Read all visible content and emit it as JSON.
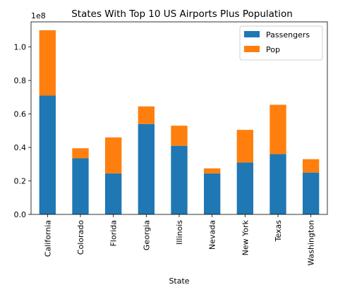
{
  "chart_data": {
    "type": "bar",
    "stacked": true,
    "title": "States With Top 10 US Airports Plus Population",
    "xlabel": "State",
    "ylabel": "",
    "y_multiplier": "1e8",
    "ylim": [
      0,
      1.15
    ],
    "yticks": [
      "0.0",
      "0.2",
      "0.4",
      "0.6",
      "0.8",
      "1.0"
    ],
    "ytick_values": [
      0,
      0.2,
      0.4,
      0.6,
      0.8,
      1.0
    ],
    "categories": [
      "California",
      "Colorado",
      "Florida",
      "Georgia",
      "Illinois",
      "Nevada",
      "New York",
      "Texas",
      "Washington"
    ],
    "series": [
      {
        "name": "Passengers",
        "color": "#1f77b4",
        "values": [
          0.71,
          0.335,
          0.245,
          0.54,
          0.41,
          0.245,
          0.31,
          0.36,
          0.25
        ]
      },
      {
        "name": "Pop",
        "color": "#ff7f0e",
        "values": [
          0.39,
          0.06,
          0.215,
          0.105,
          0.12,
          0.03,
          0.195,
          0.295,
          0.08
        ]
      }
    ],
    "legend_position": "top-right",
    "grid": false
  }
}
